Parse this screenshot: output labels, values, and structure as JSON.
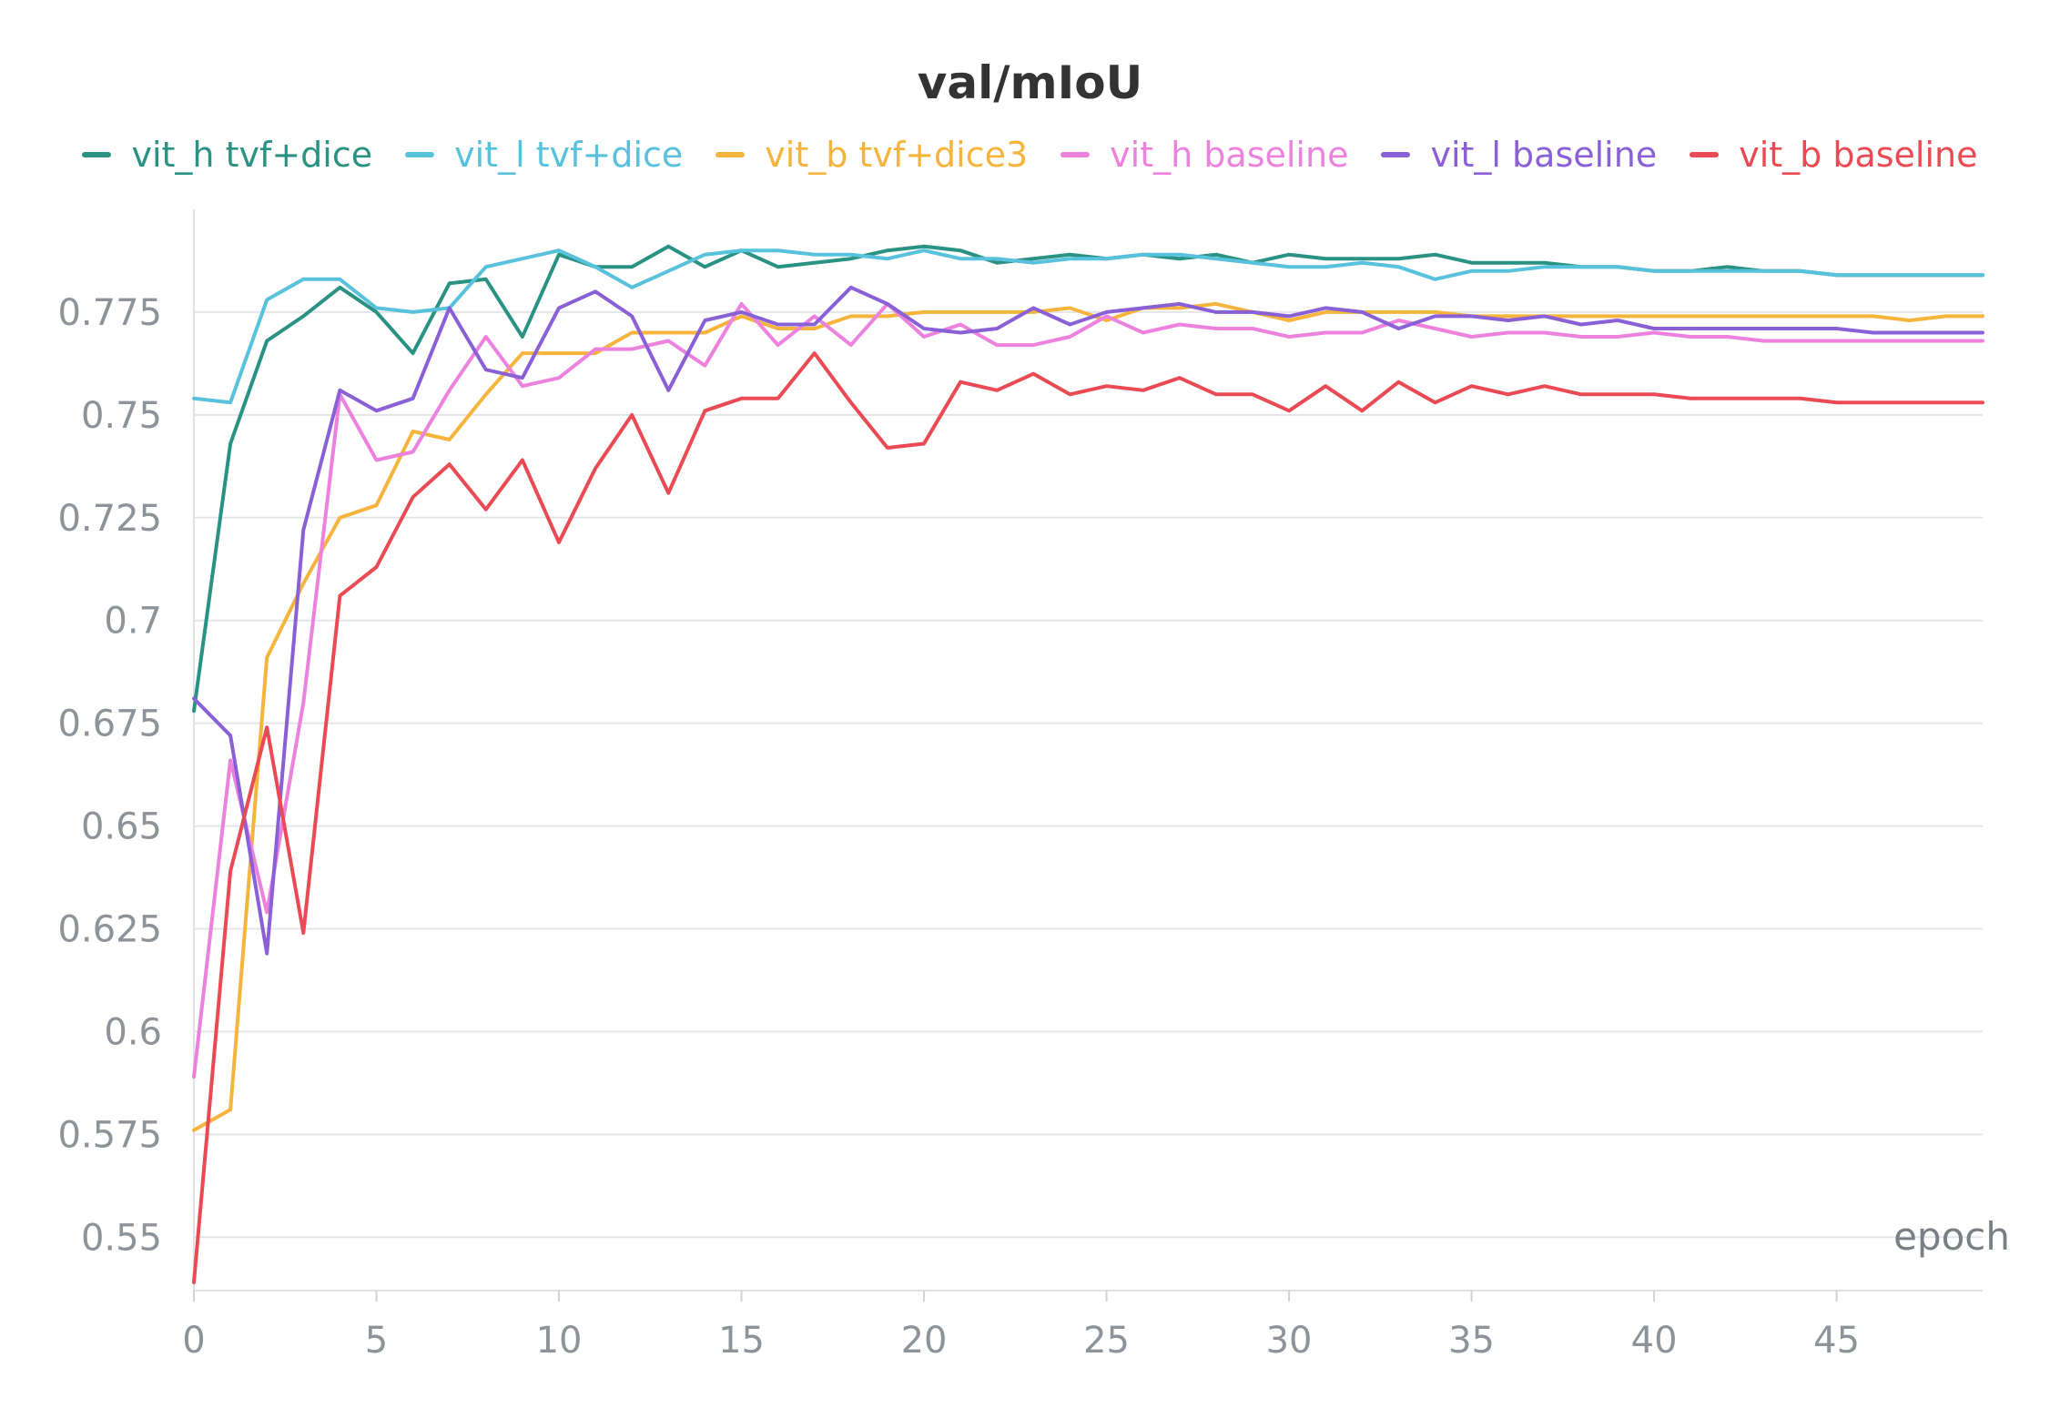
{
  "chart_data": {
    "type": "line",
    "title": "val/mIoU",
    "xlabel": "epoch",
    "ylabel": "",
    "xlim": [
      0,
      49
    ],
    "ylim": [
      0.537,
      0.8
    ],
    "grid": true,
    "legend_position": "top",
    "x_ticks": [
      0,
      5,
      10,
      15,
      20,
      25,
      30,
      35,
      40,
      45
    ],
    "y_ticks": [
      0.55,
      0.575,
      0.6,
      0.625,
      0.65,
      0.675,
      0.7,
      0.725,
      0.75,
      0.775
    ],
    "y_tick_labels": [
      "0.55",
      "0.575",
      "0.6",
      "0.625",
      "0.65",
      "0.675",
      "0.7",
      "0.725",
      "0.75",
      "0.775"
    ],
    "x": [
      0,
      1,
      2,
      3,
      4,
      5,
      6,
      7,
      8,
      9,
      10,
      11,
      12,
      13,
      14,
      15,
      16,
      17,
      18,
      19,
      20,
      21,
      22,
      23,
      24,
      25,
      26,
      27,
      28,
      29,
      30,
      31,
      32,
      33,
      34,
      35,
      36,
      37,
      38,
      39,
      40,
      41,
      42,
      43,
      44,
      45,
      46,
      47,
      48,
      49
    ],
    "series": [
      {
        "name": "vit_h tvf+dice",
        "color": "#2a9282",
        "values": [
          0.678,
          0.743,
          0.768,
          0.774,
          0.781,
          0.775,
          0.765,
          0.782,
          0.783,
          0.769,
          0.789,
          0.786,
          0.786,
          0.791,
          0.786,
          0.79,
          0.786,
          0.787,
          0.788,
          0.79,
          0.791,
          0.79,
          0.787,
          0.788,
          0.789,
          0.788,
          0.789,
          0.788,
          0.789,
          0.787,
          0.789,
          0.788,
          0.788,
          0.788,
          0.789,
          0.787,
          0.787,
          0.787,
          0.786,
          0.786,
          0.785,
          0.785,
          0.786,
          0.785,
          0.785,
          0.784,
          0.784,
          0.784,
          0.784,
          0.784
        ]
      },
      {
        "name": "vit_l tvf+dice",
        "color": "#58c2dc",
        "values": [
          0.754,
          0.753,
          0.778,
          0.783,
          0.783,
          0.776,
          0.775,
          0.776,
          0.786,
          0.788,
          0.79,
          0.786,
          0.781,
          0.785,
          0.789,
          0.79,
          0.79,
          0.789,
          0.789,
          0.788,
          0.79,
          0.788,
          0.788,
          0.787,
          0.788,
          0.788,
          0.789,
          0.789,
          0.788,
          0.787,
          0.786,
          0.786,
          0.787,
          0.786,
          0.783,
          0.785,
          0.785,
          0.786,
          0.786,
          0.786,
          0.785,
          0.785,
          0.785,
          0.785,
          0.785,
          0.784,
          0.784,
          0.784,
          0.784,
          0.784
        ]
      },
      {
        "name": "vit_b tvf+dice3",
        "color": "#f5b43c",
        "values": [
          0.576,
          0.581,
          0.691,
          0.709,
          0.725,
          0.728,
          0.746,
          0.744,
          0.755,
          0.765,
          0.765,
          0.765,
          0.77,
          0.77,
          0.77,
          0.774,
          0.771,
          0.771,
          0.774,
          0.774,
          0.775,
          0.775,
          0.775,
          0.775,
          0.776,
          0.773,
          0.776,
          0.776,
          0.777,
          0.775,
          0.773,
          0.775,
          0.775,
          0.775,
          0.775,
          0.774,
          0.774,
          0.774,
          0.774,
          0.774,
          0.774,
          0.774,
          0.774,
          0.774,
          0.774,
          0.774,
          0.774,
          0.773,
          0.774,
          0.774
        ]
      },
      {
        "name": "vit_h baseline",
        "color": "#ec82de",
        "values": [
          0.589,
          0.666,
          0.629,
          0.68,
          0.755,
          0.739,
          0.741,
          0.756,
          0.769,
          0.757,
          0.759,
          0.766,
          0.766,
          0.768,
          0.762,
          0.777,
          0.767,
          0.774,
          0.767,
          0.777,
          0.769,
          0.772,
          0.767,
          0.767,
          0.769,
          0.774,
          0.77,
          0.772,
          0.771,
          0.771,
          0.769,
          0.77,
          0.77,
          0.773,
          0.771,
          0.769,
          0.77,
          0.77,
          0.769,
          0.769,
          0.77,
          0.769,
          0.769,
          0.768,
          0.768,
          0.768,
          0.768,
          0.768,
          0.768,
          0.768
        ]
      },
      {
        "name": "vit_l baseline",
        "color": "#8a60d6",
        "values": [
          0.681,
          0.672,
          0.619,
          0.722,
          0.756,
          0.751,
          0.754,
          0.776,
          0.761,
          0.759,
          0.776,
          0.78,
          0.774,
          0.756,
          0.773,
          0.775,
          0.772,
          0.772,
          0.781,
          0.777,
          0.771,
          0.77,
          0.771,
          0.776,
          0.772,
          0.775,
          0.776,
          0.777,
          0.775,
          0.775,
          0.774,
          0.776,
          0.775,
          0.771,
          0.774,
          0.774,
          0.773,
          0.774,
          0.772,
          0.773,
          0.771,
          0.771,
          0.771,
          0.771,
          0.771,
          0.771,
          0.77,
          0.77,
          0.77,
          0.77
        ]
      },
      {
        "name": "vit_b baseline",
        "color": "#ea4a54",
        "values": [
          0.539,
          0.639,
          0.674,
          0.624,
          0.706,
          0.713,
          0.73,
          0.738,
          0.727,
          0.739,
          0.719,
          0.737,
          0.75,
          0.731,
          0.751,
          0.754,
          0.754,
          0.765,
          0.753,
          0.742,
          0.743,
          0.758,
          0.756,
          0.76,
          0.755,
          0.757,
          0.756,
          0.759,
          0.755,
          0.755,
          0.751,
          0.757,
          0.751,
          0.758,
          0.753,
          0.757,
          0.755,
          0.757,
          0.755,
          0.755,
          0.755,
          0.754,
          0.754,
          0.754,
          0.754,
          0.753,
          0.753,
          0.753,
          0.753,
          0.753
        ]
      }
    ]
  }
}
